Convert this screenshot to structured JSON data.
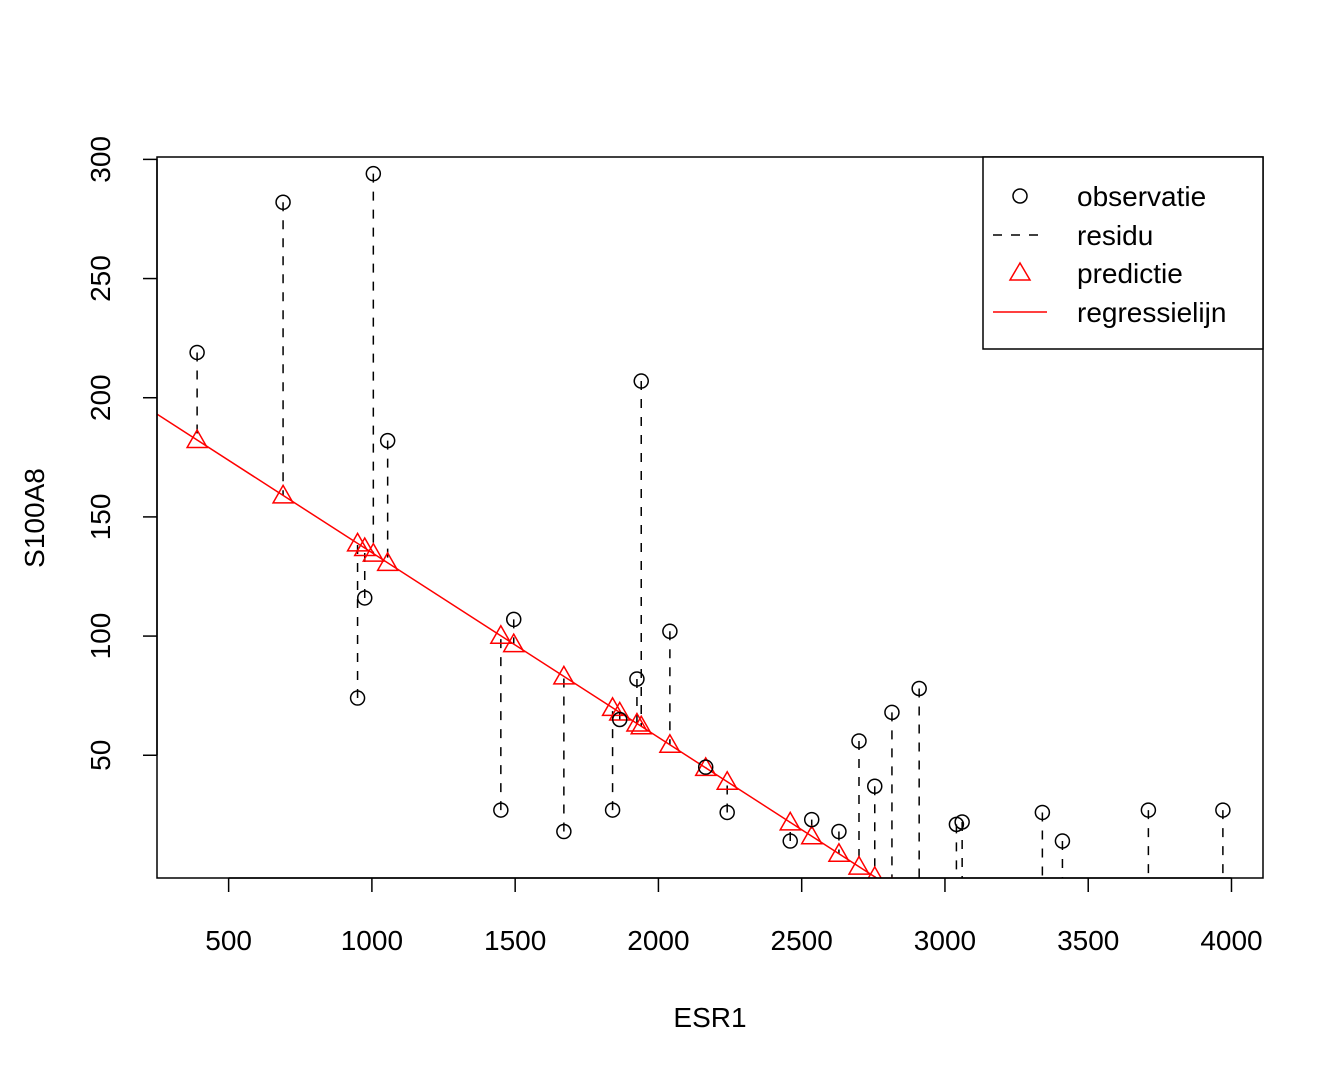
{
  "chart_data": {
    "type": "scatter",
    "xlabel": "ESR1",
    "ylabel": "S100A8",
    "xlim": [
      250,
      4110
    ],
    "ylim": [
      -1.5,
      301
    ],
    "xticks": [
      500,
      1000,
      1500,
      2000,
      2500,
      3000,
      3500,
      4000
    ],
    "yticks": [
      50,
      100,
      150,
      200,
      250,
      300
    ],
    "regression": {
      "intercept": 212.5,
      "slope": -0.0775
    },
    "observations": [
      {
        "x": 390,
        "y": 219
      },
      {
        "x": 690,
        "y": 282
      },
      {
        "x": 950,
        "y": 74
      },
      {
        "x": 975,
        "y": 116
      },
      {
        "x": 1005,
        "y": 294
      },
      {
        "x": 1055,
        "y": 182
      },
      {
        "x": 1450,
        "y": 27
      },
      {
        "x": 1495,
        "y": 107
      },
      {
        "x": 1670,
        "y": 18
      },
      {
        "x": 1840,
        "y": 27
      },
      {
        "x": 1865,
        "y": 65
      },
      {
        "x": 1925,
        "y": 82
      },
      {
        "x": 1940,
        "y": 207
      },
      {
        "x": 2040,
        "y": 102
      },
      {
        "x": 2165,
        "y": 45
      },
      {
        "x": 2240,
        "y": 26
      },
      {
        "x": 2460,
        "y": 14
      },
      {
        "x": 2535,
        "y": 23
      },
      {
        "x": 2630,
        "y": 18
      },
      {
        "x": 2700,
        "y": 56
      },
      {
        "x": 2755,
        "y": 37
      },
      {
        "x": 2815,
        "y": 68
      },
      {
        "x": 2910,
        "y": 78
      },
      {
        "x": 3040,
        "y": 21
      },
      {
        "x": 3060,
        "y": 22
      },
      {
        "x": 3340,
        "y": 26
      },
      {
        "x": 3410,
        "y": 14
      },
      {
        "x": 3710,
        "y": 27
      },
      {
        "x": 3970,
        "y": 27
      }
    ],
    "legend": {
      "position": "top-right",
      "entries": [
        {
          "label": "observatie",
          "symbol": "circle",
          "color": "#000000"
        },
        {
          "label": "residu",
          "symbol": "dashed-line",
          "color": "#000000"
        },
        {
          "label": "predictie",
          "symbol": "triangle",
          "color": "#ff0000"
        },
        {
          "label": "regressielijn",
          "symbol": "line",
          "color": "#ff0000"
        }
      ]
    },
    "colors": {
      "observation": "#000000",
      "prediction": "#ff0000",
      "regression": "#ff0000"
    }
  }
}
